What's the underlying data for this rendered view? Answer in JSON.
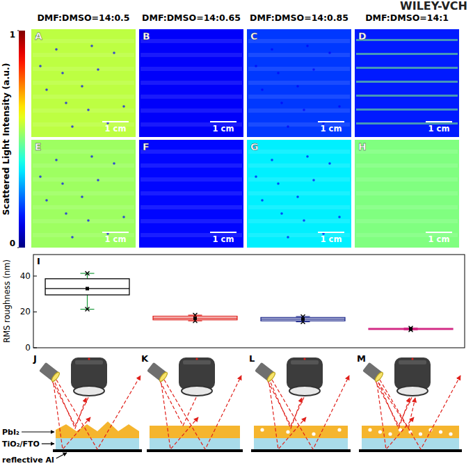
{
  "header": {
    "logo": "WILEY-VCH"
  },
  "columns": [
    "DMF:DMSO=14:0.5",
    "DMF:DMSO=14:0.65",
    "DMF:DMSO=14:0.85",
    "DMF:DMSO=14:1"
  ],
  "colorbar": {
    "label": "Scattered Light Intensity (a.u.)",
    "range": [
      0,
      1
    ],
    "ticks": [
      0,
      1
    ]
  },
  "panels": [
    {
      "letter": "A",
      "intensity": 0.56,
      "scale_bar": "1 cm"
    },
    {
      "letter": "B",
      "intensity": 0.12,
      "scale_bar": "1 cm"
    },
    {
      "letter": "C",
      "intensity": 0.18,
      "scale_bar": "1 cm"
    },
    {
      "letter": "D",
      "intensity": 0.15,
      "scale_bar": "1 cm"
    },
    {
      "letter": "E",
      "intensity": 0.53,
      "scale_bar": "1 cm"
    },
    {
      "letter": "F",
      "intensity": 0.13,
      "scale_bar": "1 cm"
    },
    {
      "letter": "G",
      "intensity": 0.36,
      "scale_bar": "1 cm"
    },
    {
      "letter": "H",
      "intensity": 0.5,
      "scale_bar": "1 cm"
    }
  ],
  "chart_data": {
    "type": "box",
    "letter": "I",
    "y_label": "RMS roughness (nm)",
    "categories": [
      null,
      null,
      null,
      null
    ],
    "ylim": [
      0,
      52
    ],
    "yticks": [
      0,
      20,
      40
    ],
    "tick_labels": "y",
    "boxes": [
      {
        "min": 21.5,
        "q1": 29.5,
        "median": 33,
        "mean": 33,
        "q3": 38.5,
        "max": 41.5,
        "color": "#000000"
      },
      {
        "min": 15,
        "q1": 15.6,
        "median": 16.5,
        "mean": 16.5,
        "q3": 17.6,
        "max": 18.2,
        "color": "#e0201b"
      },
      {
        "min": 14.5,
        "q1": 15,
        "median": 16,
        "mean": 16,
        "q3": 16.9,
        "max": 17.4,
        "color": "#1f2a8c"
      },
      {
        "min": 10,
        "q1": 10.2,
        "median": 10.5,
        "mean": 10.5,
        "q3": 10.8,
        "max": 11,
        "color": "#d0207f"
      }
    ]
  },
  "schematic": {
    "letters": [
      "J",
      "K",
      "L",
      "M"
    ],
    "layers": [
      "PbI₂",
      "TiO₂/FTO",
      "reflective Al"
    ]
  }
}
